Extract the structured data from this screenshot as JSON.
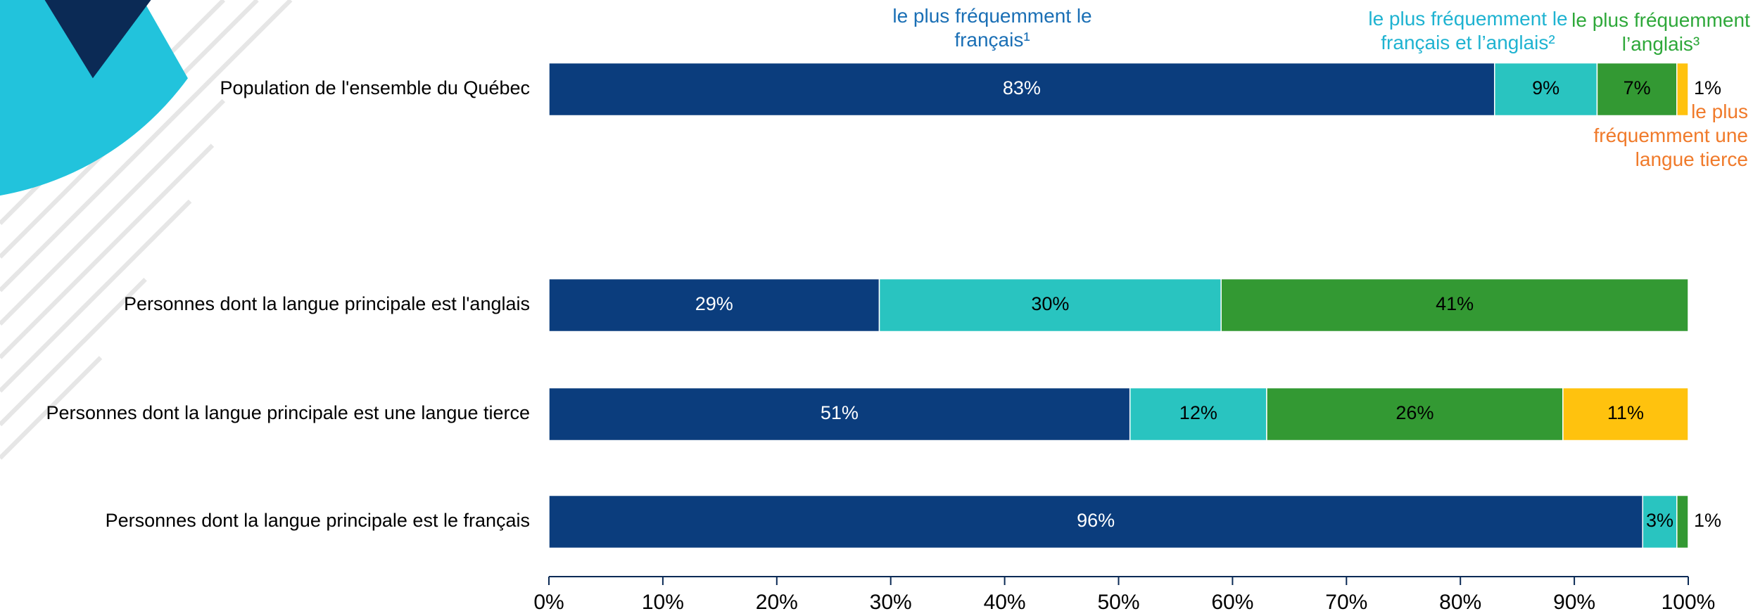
{
  "chart_data": {
    "type": "stacked-bar-horizontal",
    "categories": [
      "Population de l'ensemble du Québec",
      "Personnes dont la langue principale est l'anglais",
      "Personnes dont la langue principale est une langue tierce",
      "Personnes dont la langue principale est le français"
    ],
    "series": [
      {
        "name": "le plus fréquemment le français¹",
        "color": "#0b3d7d",
        "label_color": "#1a6fb5",
        "text_color": "#ffffff",
        "values": [
          83,
          29,
          51,
          96
        ],
        "value_labels": [
          "83%",
          "29%",
          "51%",
          "96%"
        ]
      },
      {
        "name": "le plus fréquemment le français et l’anglais²",
        "color": "#29c4c0",
        "label_color": "#1fb3d1",
        "text_color": "#000000",
        "values": [
          9,
          30,
          12,
          3
        ],
        "value_labels": [
          "9%",
          "30%",
          "12%",
          "3%"
        ]
      },
      {
        "name": "le plus fréquemment l’anglais³",
        "color": "#339933",
        "label_color": "#2ea83a",
        "text_color": "#000000",
        "values": [
          7,
          41,
          26,
          1
        ],
        "value_labels": [
          "7%",
          "41%",
          "26%",
          "1%"
        ]
      },
      {
        "name": "le plus fréquemment une langue tierce",
        "color": "#ffc20e",
        "label_color": "#f07a2a",
        "text_color": "#000000",
        "values": [
          1,
          null,
          11,
          null
        ],
        "value_labels": [
          "1%",
          null,
          "11%",
          null
        ]
      }
    ],
    "xlim": [
      0,
      100
    ],
    "xticks": [
      {
        "value": 0,
        "label": "0%"
      },
      {
        "value": 10,
        "label": "10%"
      },
      {
        "value": 20,
        "label": "20%"
      },
      {
        "value": 30,
        "label": "30%"
      },
      {
        "value": 40,
        "label": "40%"
      },
      {
        "value": 50,
        "label": "50%"
      },
      {
        "value": 60,
        "label": "60%"
      },
      {
        "value": 70,
        "label": "70%"
      },
      {
        "value": 80,
        "label": "80%"
      },
      {
        "value": 90,
        "label": "90%"
      },
      {
        "value": 100,
        "label": "100%"
      }
    ]
  }
}
